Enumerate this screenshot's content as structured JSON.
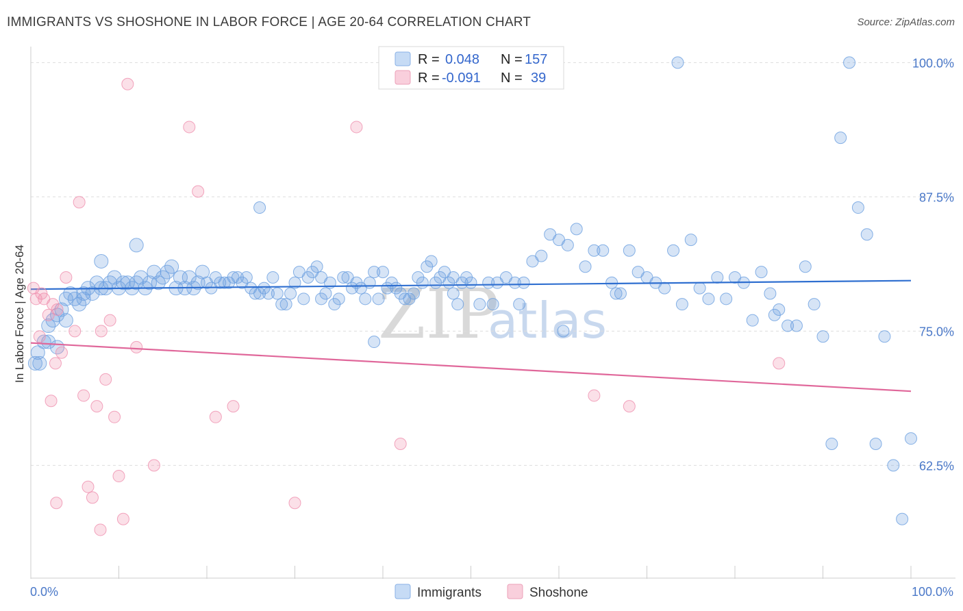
{
  "title": "IMMIGRANTS VS SHOSHONE IN LABOR FORCE | AGE 20-64 CORRELATION CHART",
  "source": "Source: ZipAtlas.com",
  "watermark": {
    "part1": "ZIP",
    "part2": "atlas"
  },
  "legend": {
    "rows": [
      {
        "r_label": "R =",
        "r_value": "0.048",
        "n_label": "N =",
        "n_value": "157",
        "color": "#a8c8f0"
      },
      {
        "r_label": "R =",
        "r_value": "-0.091",
        "n_label": "N =",
        "n_value": "39",
        "color": "#f5b8cb"
      }
    ]
  },
  "bottom_legend": [
    {
      "label": "Immigrants",
      "color": "#a8c8f0"
    },
    {
      "label": "Shoshone",
      "color": "#f5b8cb"
    }
  ],
  "chart_data": {
    "type": "scatter",
    "xlabel": "",
    "ylabel": "In Labor Force | Age 20-64",
    "xlim": [
      0,
      100
    ],
    "ylim": [
      52,
      102
    ],
    "x_tick_labels": [
      "0.0%",
      "100.0%"
    ],
    "y_ticks": [
      {
        "value": 100.0,
        "label": "100.0%"
      },
      {
        "value": 87.5,
        "label": "87.5%"
      },
      {
        "value": 75.0,
        "label": "75.0%"
      },
      {
        "value": 62.5,
        "label": "62.5%"
      }
    ],
    "series": [
      {
        "name": "Immigrants",
        "color": "#6a9fe0",
        "trendline": {
          "x": [
            0,
            100
          ],
          "y": [
            78.9,
            79.7
          ],
          "color": "#2f6fd0"
        },
        "points": [
          [
            0.5,
            72
          ],
          [
            0.8,
            73
          ],
          [
            1.5,
            74
          ],
          [
            2,
            75.5
          ],
          [
            2.5,
            76
          ],
          [
            3,
            76.5
          ],
          [
            3.5,
            77
          ],
          [
            4,
            78
          ],
          [
            4.5,
            78.5
          ],
          [
            5,
            78
          ],
          [
            5.5,
            77.5
          ],
          [
            6,
            78.5
          ],
          [
            6.5,
            79
          ],
          [
            7,
            78.5
          ],
          [
            7.5,
            79.5
          ],
          [
            8,
            79
          ],
          [
            8.5,
            79
          ],
          [
            9,
            79.5
          ],
          [
            9.5,
            80
          ],
          [
            10,
            79
          ],
          [
            10.5,
            79.5
          ],
          [
            11,
            79.5
          ],
          [
            11.5,
            79
          ],
          [
            12,
            79.5
          ],
          [
            12.5,
            80
          ],
          [
            13,
            79
          ],
          [
            13.5,
            79.5
          ],
          [
            14,
            80.5
          ],
          [
            14.5,
            79.5
          ],
          [
            15,
            80
          ],
          [
            15.5,
            80.5
          ],
          [
            16,
            81
          ],
          [
            16.5,
            79
          ],
          [
            17,
            80
          ],
          [
            17.5,
            79
          ],
          [
            18,
            80
          ],
          [
            18.5,
            79
          ],
          [
            19,
            79.5
          ],
          [
            19.5,
            80.5
          ],
          [
            20,
            79.5
          ],
          [
            20.5,
            79
          ],
          [
            21,
            80
          ],
          [
            21.5,
            79.5
          ],
          [
            22,
            79.5
          ],
          [
            22.5,
            79.5
          ],
          [
            23,
            80
          ],
          [
            23.5,
            80
          ],
          [
            24,
            79.5
          ],
          [
            24.5,
            80
          ],
          [
            25,
            79
          ],
          [
            25.5,
            78.5
          ],
          [
            26,
            78.5
          ],
          [
            26.5,
            79
          ],
          [
            27,
            78.5
          ],
          [
            27.5,
            80
          ],
          [
            28,
            78.5
          ],
          [
            28.5,
            77.5
          ],
          [
            29,
            77.5
          ],
          [
            29.5,
            78.5
          ],
          [
            30,
            79.5
          ],
          [
            30.5,
            80.5
          ],
          [
            31,
            78
          ],
          [
            31.5,
            80
          ],
          [
            32,
            80.5
          ],
          [
            32.5,
            81
          ],
          [
            33,
            80
          ],
          [
            33.5,
            78.5
          ],
          [
            34,
            79.5
          ],
          [
            34.5,
            77.5
          ],
          [
            35,
            78
          ],
          [
            35.5,
            80
          ],
          [
            36,
            80
          ],
          [
            36.5,
            79
          ],
          [
            37,
            79.5
          ],
          [
            37.5,
            79
          ],
          [
            38,
            78
          ],
          [
            38.5,
            79.5
          ],
          [
            39,
            80.5
          ],
          [
            39.5,
            78
          ],
          [
            40,
            80.5
          ],
          [
            40.5,
            79
          ],
          [
            41,
            79.5
          ],
          [
            41.5,
            79
          ],
          [
            42,
            78.5
          ],
          [
            42.5,
            78
          ],
          [
            43,
            78
          ],
          [
            43.5,
            78.5
          ],
          [
            44,
            80
          ],
          [
            44.5,
            79.5
          ],
          [
            45,
            81
          ],
          [
            45.5,
            81.5
          ],
          [
            46,
            79.5
          ],
          [
            46.5,
            80
          ],
          [
            47,
            80.5
          ],
          [
            47.5,
            79.5
          ],
          [
            48,
            80
          ],
          [
            48.5,
            77.5
          ],
          [
            49,
            79.5
          ],
          [
            49.5,
            80
          ],
          [
            50,
            79.5
          ],
          [
            51,
            77.5
          ],
          [
            52,
            79.5
          ],
          [
            53,
            79.5
          ],
          [
            54,
            80
          ],
          [
            55,
            79.5
          ],
          [
            56,
            79.5
          ],
          [
            57,
            81.5
          ],
          [
            58,
            82
          ],
          [
            59,
            84
          ],
          [
            60,
            83.5
          ],
          [
            61,
            83
          ],
          [
            62,
            84.5
          ],
          [
            63,
            81
          ],
          [
            64,
            82.5
          ],
          [
            65,
            82.5
          ],
          [
            66,
            79.5
          ],
          [
            67,
            78.5
          ],
          [
            68,
            82.5
          ],
          [
            69,
            80.5
          ],
          [
            70,
            80
          ],
          [
            71,
            79.5
          ],
          [
            72,
            79
          ],
          [
            73,
            82.5
          ],
          [
            74,
            77.5
          ],
          [
            75,
            83.5
          ],
          [
            76,
            79
          ],
          [
            77,
            78
          ],
          [
            78,
            80
          ],
          [
            79,
            78
          ],
          [
            80,
            80
          ],
          [
            81,
            79.5
          ],
          [
            82,
            76
          ],
          [
            83,
            80.5
          ],
          [
            84,
            78.5
          ],
          [
            85,
            77
          ],
          [
            86,
            75.5
          ],
          [
            87,
            75.5
          ],
          [
            88,
            81
          ],
          [
            89,
            77.5
          ],
          [
            90,
            74.5
          ],
          [
            91,
            64.5
          ],
          [
            92,
            93
          ],
          [
            93,
            100
          ],
          [
            94,
            86.5
          ],
          [
            95,
            84
          ],
          [
            96,
            64.5
          ],
          [
            97,
            74.5
          ],
          [
            98,
            62.5
          ],
          [
            99,
            57.5
          ],
          [
            100,
            65
          ],
          [
            84.5,
            76.5
          ],
          [
            73.5,
            100
          ],
          [
            60.5,
            75
          ],
          [
            66.5,
            78.5
          ],
          [
            55.5,
            77.5
          ],
          [
            52.5,
            77.5
          ],
          [
            39,
            74
          ],
          [
            26,
            86.5
          ],
          [
            12,
            83
          ],
          [
            8,
            81.5
          ],
          [
            3,
            73.5
          ],
          [
            2,
            74
          ],
          [
            1,
            72
          ],
          [
            4,
            76
          ],
          [
            6,
            78
          ],
          [
            33,
            78
          ],
          [
            48,
            78.5
          ]
        ]
      },
      {
        "name": "Shoshone",
        "color": "#ef8fae",
        "trendline": {
          "x": [
            0,
            100
          ],
          "y": [
            73.9,
            69.4
          ],
          "color": "#e0679a"
        },
        "points": [
          [
            0.3,
            79
          ],
          [
            0.6,
            78
          ],
          [
            1,
            74.5
          ],
          [
            1.5,
            78
          ],
          [
            2,
            76.5
          ],
          [
            2.5,
            77.5
          ],
          [
            3,
            77
          ],
          [
            3.5,
            73
          ],
          [
            4,
            80
          ],
          [
            5,
            75
          ],
          [
            5.5,
            87
          ],
          [
            6,
            69
          ],
          [
            6.5,
            60.5
          ],
          [
            7,
            59.5
          ],
          [
            7.5,
            68
          ],
          [
            8,
            75
          ],
          [
            8.5,
            70.5
          ],
          [
            9,
            76
          ],
          [
            9.5,
            67
          ],
          [
            10,
            61.5
          ],
          [
            10.5,
            57.5
          ],
          [
            11,
            98
          ],
          [
            12,
            73.5
          ],
          [
            14,
            62.5
          ],
          [
            18,
            94
          ],
          [
            19,
            88
          ],
          [
            21,
            67
          ],
          [
            23,
            68
          ],
          [
            30,
            59
          ],
          [
            37,
            94
          ],
          [
            42,
            64.5
          ],
          [
            64,
            69
          ],
          [
            68,
            68
          ],
          [
            85,
            72
          ],
          [
            2.8,
            72
          ],
          [
            2.3,
            68.5
          ],
          [
            1.2,
            78.5
          ],
          [
            2.9,
            59
          ],
          [
            7.9,
            56.5
          ]
        ]
      }
    ]
  }
}
